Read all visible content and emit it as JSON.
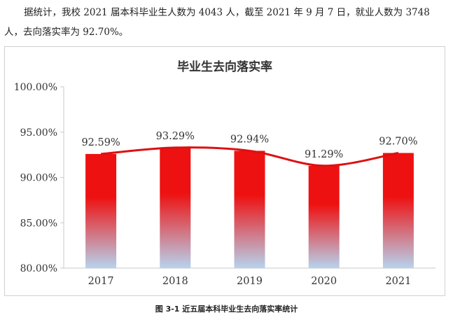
{
  "paragraph": "据统计，我校 2021 届本科毕业生人数为 4043 人，截至 2021 年 9 月 7 日，就业人数为 3748 人，去向落实率为 92.70%。",
  "caption": "图 3-1 近五届本科毕业生去向落实率统计",
  "chart_data": {
    "type": "bar",
    "title": "毕业生去向落实率",
    "categories": [
      "2017",
      "2018",
      "2019",
      "2020",
      "2021"
    ],
    "values": [
      92.59,
      93.29,
      92.94,
      91.29,
      92.7
    ],
    "value_labels": [
      "92.59%",
      "93.29%",
      "92.94%",
      "91.29%",
      "92.70%"
    ],
    "overlay_line": true,
    "ylim": [
      80,
      100
    ],
    "yticks": [
      80,
      85,
      90,
      95,
      100
    ],
    "ytick_labels": [
      "80.00%",
      "85.00%",
      "90.00%",
      "95.00%",
      "100.00%"
    ],
    "xlabel": "",
    "ylabel": "",
    "grid": false,
    "colors": {
      "bar_top": "#ee1111",
      "bar_bottom": "#b7d3ee",
      "line": "#dd1111"
    }
  }
}
